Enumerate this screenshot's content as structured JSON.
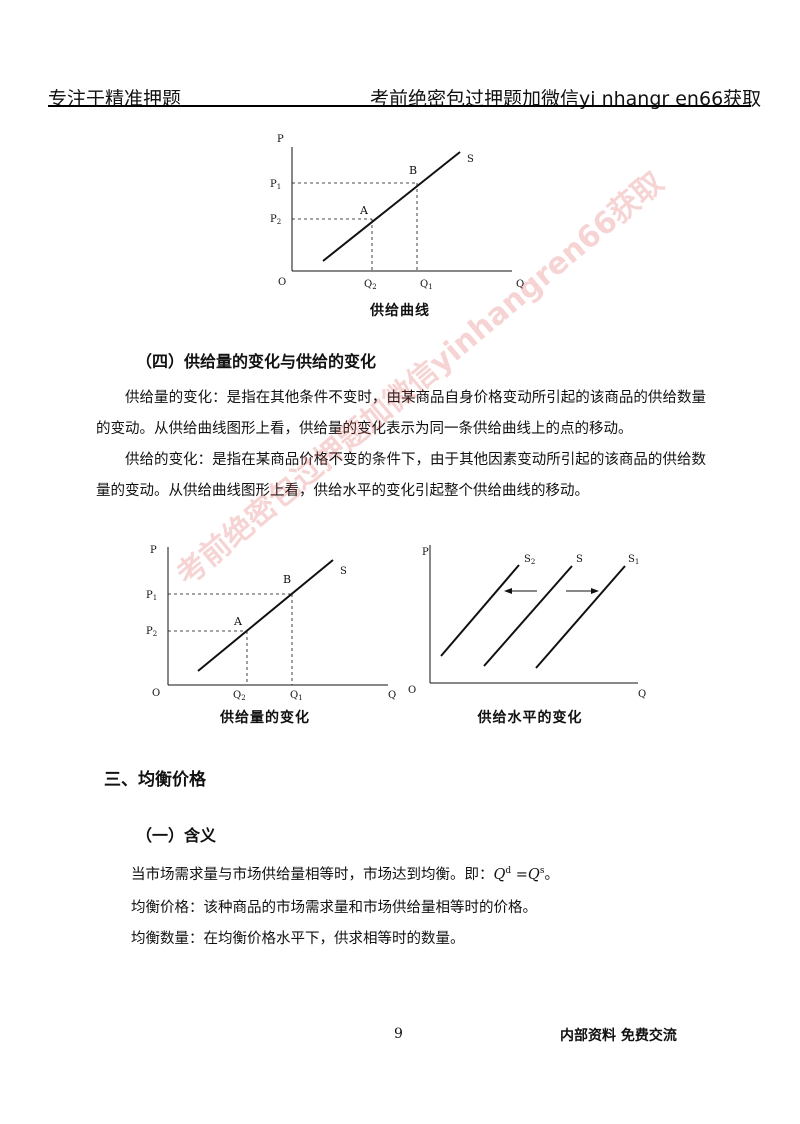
{
  "header": {
    "left": "专注于精准押题",
    "right": "考前绝密包过押题加微信yi nhangr en66获取"
  },
  "watermark": "考前绝密包过押题加微信yinhangren66获取",
  "figure1": {
    "p": "P",
    "s": "S",
    "b": "B",
    "a": "A",
    "p1": "P",
    "p1sub": "1",
    "p2": "P",
    "p2sub": "2",
    "o": "O",
    "q2": "Q",
    "q2sub": "2",
    "q1": "Q",
    "q1sub": "1",
    "q": "Q",
    "caption": "供给曲线"
  },
  "section4": {
    "title": "（四）供给量的变化与供给的变化",
    "para1": "供给量的变化：是指在其他条件不变时，由某商品自身价格变动所引起的该商品的供给数量的变动。从供给曲线图形上看，供给量的变化表示为同一条供给曲线上的点的移动。",
    "para2": "供给的变化：是指在某商品价格不变的条件下，由于其他因素变动所引起的该商品的供给数量的变动。从供给曲线图形上看，供给水平的变化引起整个供给曲线的移动。"
  },
  "figure2": {
    "p": "P",
    "s": "S",
    "b": "B",
    "a": "A",
    "p1": "P",
    "p1sub": "1",
    "p2": "P",
    "p2sub": "2",
    "o": "O",
    "q2": "Q",
    "q2sub": "2",
    "q1": "Q",
    "q1sub": "1",
    "q": "Q",
    "caption": "供给量的变化"
  },
  "figure3": {
    "p": "P",
    "s2": "S",
    "s2sub": "2",
    "s": "S",
    "s1": "S",
    "s1sub": "1",
    "o": "O",
    "q": "Q",
    "caption": "供给水平的变化"
  },
  "section3": {
    "title": "三、均衡价格",
    "sub": "（一）含义",
    "line1_pre": "当市场需求量与市场供给量相等时，市场达到均衡。即：",
    "eq_q": "Q",
    "eq_d": "d",
    "eq_eq": " =",
    "eq_s": "s",
    "eq_end": "。",
    "line2": "均衡价格：该种商品的市场需求量和市场供给量相等时的价格。",
    "line3": "均衡数量：在均衡价格水平下，供求相等时的数量。"
  },
  "footer": {
    "page": "9",
    "note": "内部资料  免费交流"
  }
}
